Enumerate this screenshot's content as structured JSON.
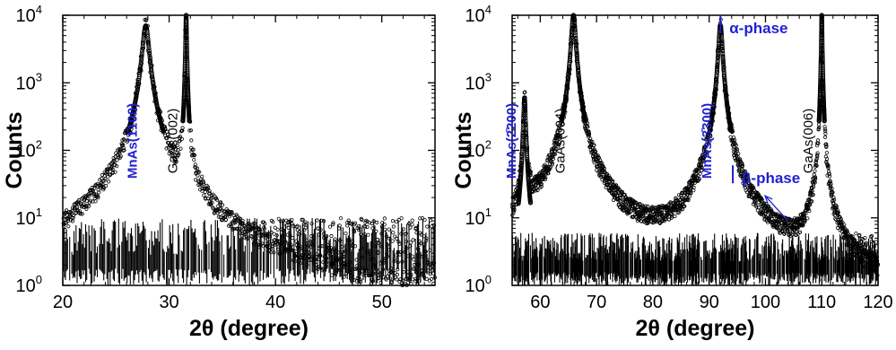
{
  "colors": {
    "data": "#000000",
    "annotation": "#1f1fd0"
  },
  "chart_data": [
    {
      "type": "scatter",
      "title": "",
      "xlabel": "2θ (degree)",
      "ylabel": "Counts",
      "xlim": [
        20,
        55
      ],
      "ylim": [
        1,
        10000
      ],
      "yscale": "log",
      "grid": false,
      "xticks": [
        {
          "value": 20,
          "label": "20"
        },
        {
          "value": 30,
          "label": "30"
        },
        {
          "value": 40,
          "label": "40"
        },
        {
          "value": 50,
          "label": "50"
        }
      ],
      "yticks": [
        {
          "value": 1,
          "base": "10",
          "exp": "0"
        },
        {
          "value": 10,
          "base": "10",
          "exp": "1"
        },
        {
          "value": 100,
          "base": "10",
          "exp": "2"
        },
        {
          "value": 1000,
          "base": "10",
          "exp": "3"
        },
        {
          "value": 10000,
          "base": "10",
          "exp": "4"
        }
      ],
      "background_counts": [
        1,
        10
      ],
      "peaks": [
        {
          "x": 27.8,
          "height": 7000,
          "width": 0.28,
          "label": "MnAs(1̄100)",
          "color": "annotation"
        },
        {
          "x": 31.6,
          "height": 10000,
          "width": 0.05,
          "label": "GaAs(002)",
          "color": "data"
        }
      ],
      "annotations": []
    },
    {
      "type": "scatter",
      "title": "",
      "xlabel": "2θ (degree)",
      "ylabel": "Counts",
      "xlim": [
        55,
        120
      ],
      "ylim": [
        1,
        10000
      ],
      "yscale": "log",
      "grid": false,
      "xticks": [
        {
          "value": 60,
          "label": "60"
        },
        {
          "value": 70,
          "label": "70"
        },
        {
          "value": 80,
          "label": "80"
        },
        {
          "value": 90,
          "label": "90"
        },
        {
          "value": 100,
          "label": "100"
        },
        {
          "value": 110,
          "label": "110"
        },
        {
          "value": 120,
          "label": "120"
        }
      ],
      "yticks": [
        {
          "value": 1,
          "base": "10",
          "exp": "0"
        },
        {
          "value": 10,
          "base": "10",
          "exp": "1"
        },
        {
          "value": 100,
          "base": "10",
          "exp": "2"
        },
        {
          "value": 1000,
          "base": "10",
          "exp": "3"
        },
        {
          "value": 10000,
          "base": "10",
          "exp": "4"
        }
      ],
      "background_counts": [
        1,
        6
      ],
      "peaks": [
        {
          "x": 57.2,
          "height": 600,
          "width": 0.18,
          "label": "MnAs(2̄200)",
          "color": "annotation"
        },
        {
          "x": 65.9,
          "height": 10000,
          "width": 0.35,
          "label": "GaAs(004)",
          "color": "data"
        },
        {
          "x": 92.0,
          "height": 7000,
          "width": 0.32,
          "label": "MnAs(3̄300)",
          "color": "annotation"
        },
        {
          "x": 110.0,
          "height": 10000,
          "width": 0.08,
          "label": "GaAs(006)",
          "color": "data"
        }
      ],
      "annotations": [
        {
          "text": "α-phase",
          "x": 92.0,
          "y": 10000,
          "marker": "line"
        },
        {
          "text": "β-phase",
          "x": 94.2,
          "y": 60,
          "marker": "line",
          "arrow_from": [
            104,
            9
          ]
        }
      ]
    }
  ]
}
